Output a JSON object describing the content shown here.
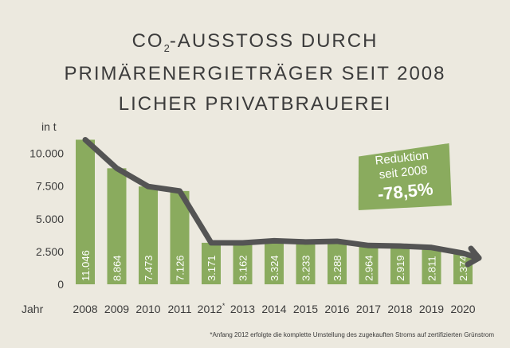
{
  "title": {
    "line1_prefix": "CO",
    "line1_sub": "2",
    "line1_suffix": "-AUSSTOSS DURCH",
    "line2": "PRIMÄRENERGIETRÄGER SEIT 2008",
    "line3": "LICHER PRIVATBRAUEREI"
  },
  "badge": {
    "line1": "Reduktion",
    "line2": "seit 2008",
    "line3": "-78,5%"
  },
  "footnote": "*Anfang 2012 erfolgte die komplette Umstellung des zugekauften Stroms auf zertifizierten Grünstrom",
  "colors": {
    "bar": "#8aab5e",
    "line": "#545454",
    "background": "#ece9df",
    "text": "#3b3b3b"
  },
  "chart_data": {
    "type": "bar",
    "ylabel": "in t",
    "xlabel": "Jahr",
    "categories": [
      "2008",
      "2009",
      "2010",
      "2011",
      "2012*",
      "2013",
      "2014",
      "2015",
      "2016",
      "2017",
      "2018",
      "2019",
      "2020"
    ],
    "values": [
      11046,
      8864,
      7473,
      7126,
      3171,
      3162,
      3324,
      3233,
      3288,
      2964,
      2919,
      2811,
      2374
    ],
    "value_labels": [
      "11.046",
      "8.864",
      "7.473",
      "7.126",
      "3.171",
      "3.162",
      "3.324",
      "3.233",
      "3.288",
      "2.964",
      "2.919",
      "2.811",
      "2.374"
    ],
    "yticks": [
      0,
      2500,
      5000,
      7500,
      10000
    ],
    "ytick_labels": [
      "0",
      "2.500",
      "5.000",
      "7.500",
      "10.000"
    ],
    "ylim": [
      0,
      11500
    ],
    "trend_line": true,
    "grid": false
  }
}
